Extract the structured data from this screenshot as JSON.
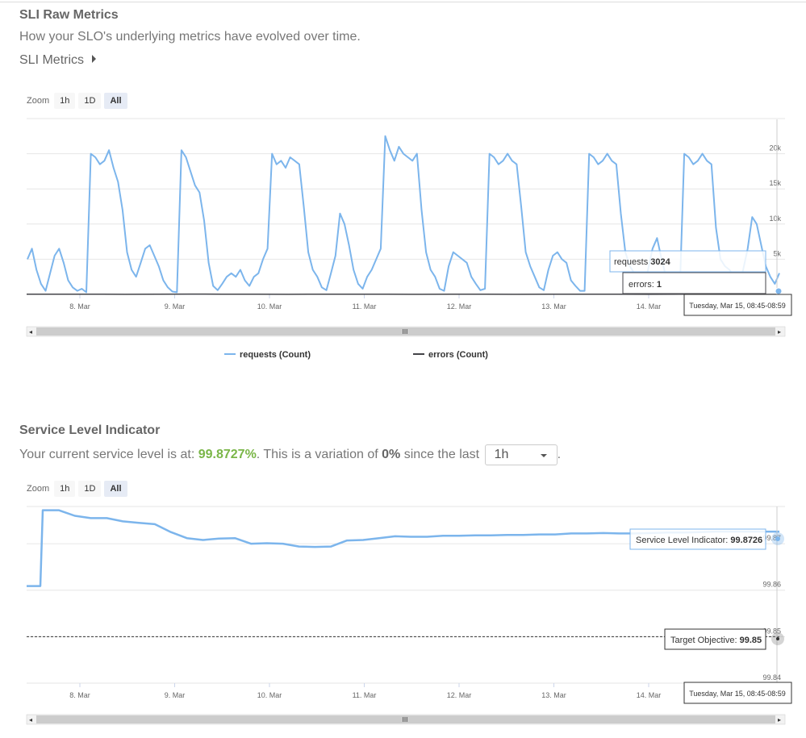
{
  "raw": {
    "title": "SLI Raw Metrics",
    "description": "How your SLO's underlying metrics have evolved over time.",
    "metrics_toggle": "SLI Metrics",
    "zoom": {
      "label": "Zoom",
      "buttons": [
        "1h",
        "1D",
        "All"
      ],
      "selected": "All"
    },
    "tooltip": {
      "requests_label": "requests",
      "requests_value": "3024",
      "errors_label": "errors:",
      "errors_value": "1",
      "time": "Tuesday, Mar 15, 08:45-08:59"
    },
    "legend": [
      {
        "label": "requests (Count)",
        "color": "#7cb5ec"
      },
      {
        "label": "errors (Count)",
        "color": "#434348"
      }
    ]
  },
  "sli": {
    "title": "Service Level Indicator",
    "status_prefix": "Your current service level is at:",
    "current_value": "99.8727%",
    "status_mid": ". This is a variation of",
    "variation": "0%",
    "status_suffix": "since the last",
    "period": "1h",
    "period_end": ".",
    "zoom": {
      "label": "Zoom",
      "buttons": [
        "1h",
        "1D",
        "All"
      ],
      "selected": "All"
    },
    "tooltip": {
      "sli_label": "Service Level Indicator:",
      "sli_value": "99.8726",
      "target_label": "Target Objective:",
      "target_value": "99.85",
      "time": "Tuesday, Mar 15, 08:45-08:59"
    }
  },
  "chart_data": [
    {
      "type": "line",
      "x_ticks": [
        "8. Mar",
        "9. Mar",
        "10. Mar",
        "11. Mar",
        "12. Mar",
        "13. Mar",
        "14. Mar"
      ],
      "y_ticks": [
        "5k",
        "10k",
        "15k",
        "20k"
      ],
      "ylim": [
        0,
        25000
      ],
      "series": [
        {
          "name": "requests (Count)",
          "color": "#7cb5ec",
          "values": [
            5000,
            6500,
            3500,
            1500,
            500,
            3000,
            5500,
            6500,
            4500,
            2000,
            1000,
            500,
            800,
            300,
            20000,
            19500,
            18500,
            19000,
            20500,
            18000,
            16000,
            12000,
            6000,
            3500,
            2500,
            4500,
            6500,
            7000,
            5500,
            4000,
            2000,
            1000,
            400,
            300,
            20500,
            19500,
            17500,
            15500,
            14500,
            10500,
            4500,
            1200,
            600,
            1500,
            2500,
            3000,
            2500,
            3500,
            2000,
            1200,
            2500,
            3000,
            5000,
            6500,
            20000,
            18500,
            19000,
            18000,
            19500,
            19000,
            18500,
            12500,
            6000,
            3500,
            2500,
            1000,
            600,
            3000,
            5500,
            11500,
            10000,
            7000,
            3500,
            1500,
            800,
            2500,
            3500,
            5000,
            6500,
            22500,
            20500,
            19000,
            21000,
            20000,
            19500,
            19000,
            20000,
            12000,
            6000,
            3500,
            2500,
            800,
            500,
            4000,
            6000,
            5500,
            5000,
            4500,
            2500,
            1500,
            600,
            800,
            20000,
            19500,
            18500,
            19000,
            20000,
            19000,
            18500,
            12500,
            6000,
            4000,
            2500,
            1000,
            600,
            3500,
            5500,
            6000,
            5000,
            4500,
            2000,
            1200,
            500,
            500,
            20000,
            19500,
            18500,
            19000,
            20000,
            19000,
            18500,
            11500,
            6000,
            4000,
            3000,
            1000,
            800,
            3500,
            6500,
            8000,
            5000,
            2500,
            1200,
            700,
            300,
            20000,
            19500,
            18500,
            19000,
            20000,
            19000,
            18500,
            9500,
            5000,
            4000,
            3500,
            2500,
            1000,
            3500,
            6500,
            11000,
            10000,
            7000,
            4000,
            2500,
            1500,
            3024
          ]
        },
        {
          "name": "errors (Count)",
          "color": "#434348",
          "values": [
            20,
            40,
            30,
            10,
            20,
            50,
            30,
            20,
            10,
            40,
            30,
            20,
            10,
            30,
            20,
            10,
            40,
            20,
            30,
            10,
            20,
            30,
            10,
            1
          ]
        }
      ]
    },
    {
      "type": "line",
      "x_ticks": [
        "8. Mar",
        "9. Mar",
        "10. Mar",
        "11. Mar",
        "12. Mar",
        "13. Mar",
        "14. Mar"
      ],
      "y_ticks": [
        "99.84",
        "99.85",
        "99.86",
        "99.87"
      ],
      "ylim": [
        99.84,
        99.878
      ],
      "series": [
        {
          "name": "Service Level Indicator",
          "color": "#7cb5ec",
          "values": [
            99.8609,
            99.8609,
            99.8772,
            99.8772,
            99.876,
            99.8755,
            99.8755,
            99.8748,
            99.8745,
            99.8742,
            99.8725,
            99.8712,
            99.8708,
            99.8711,
            99.8712,
            99.87,
            99.8701,
            99.87,
            99.8694,
            99.8693,
            99.8694,
            99.8707,
            99.8708,
            99.8712,
            99.8716,
            99.8715,
            99.8715,
            99.8717,
            99.8717,
            99.8718,
            99.8718,
            99.8719,
            99.8719,
            99.872,
            99.872,
            99.8722,
            99.8722,
            99.8723,
            99.8722,
            99.8722,
            99.8723,
            99.8724,
            99.8724,
            99.8725,
            99.8726,
            99.8726,
            99.8726,
            99.8726,
            99.8726
          ]
        },
        {
          "name": "Target Objective",
          "color": "#333333",
          "values": [
            99.85,
            99.85
          ]
        }
      ]
    }
  ]
}
